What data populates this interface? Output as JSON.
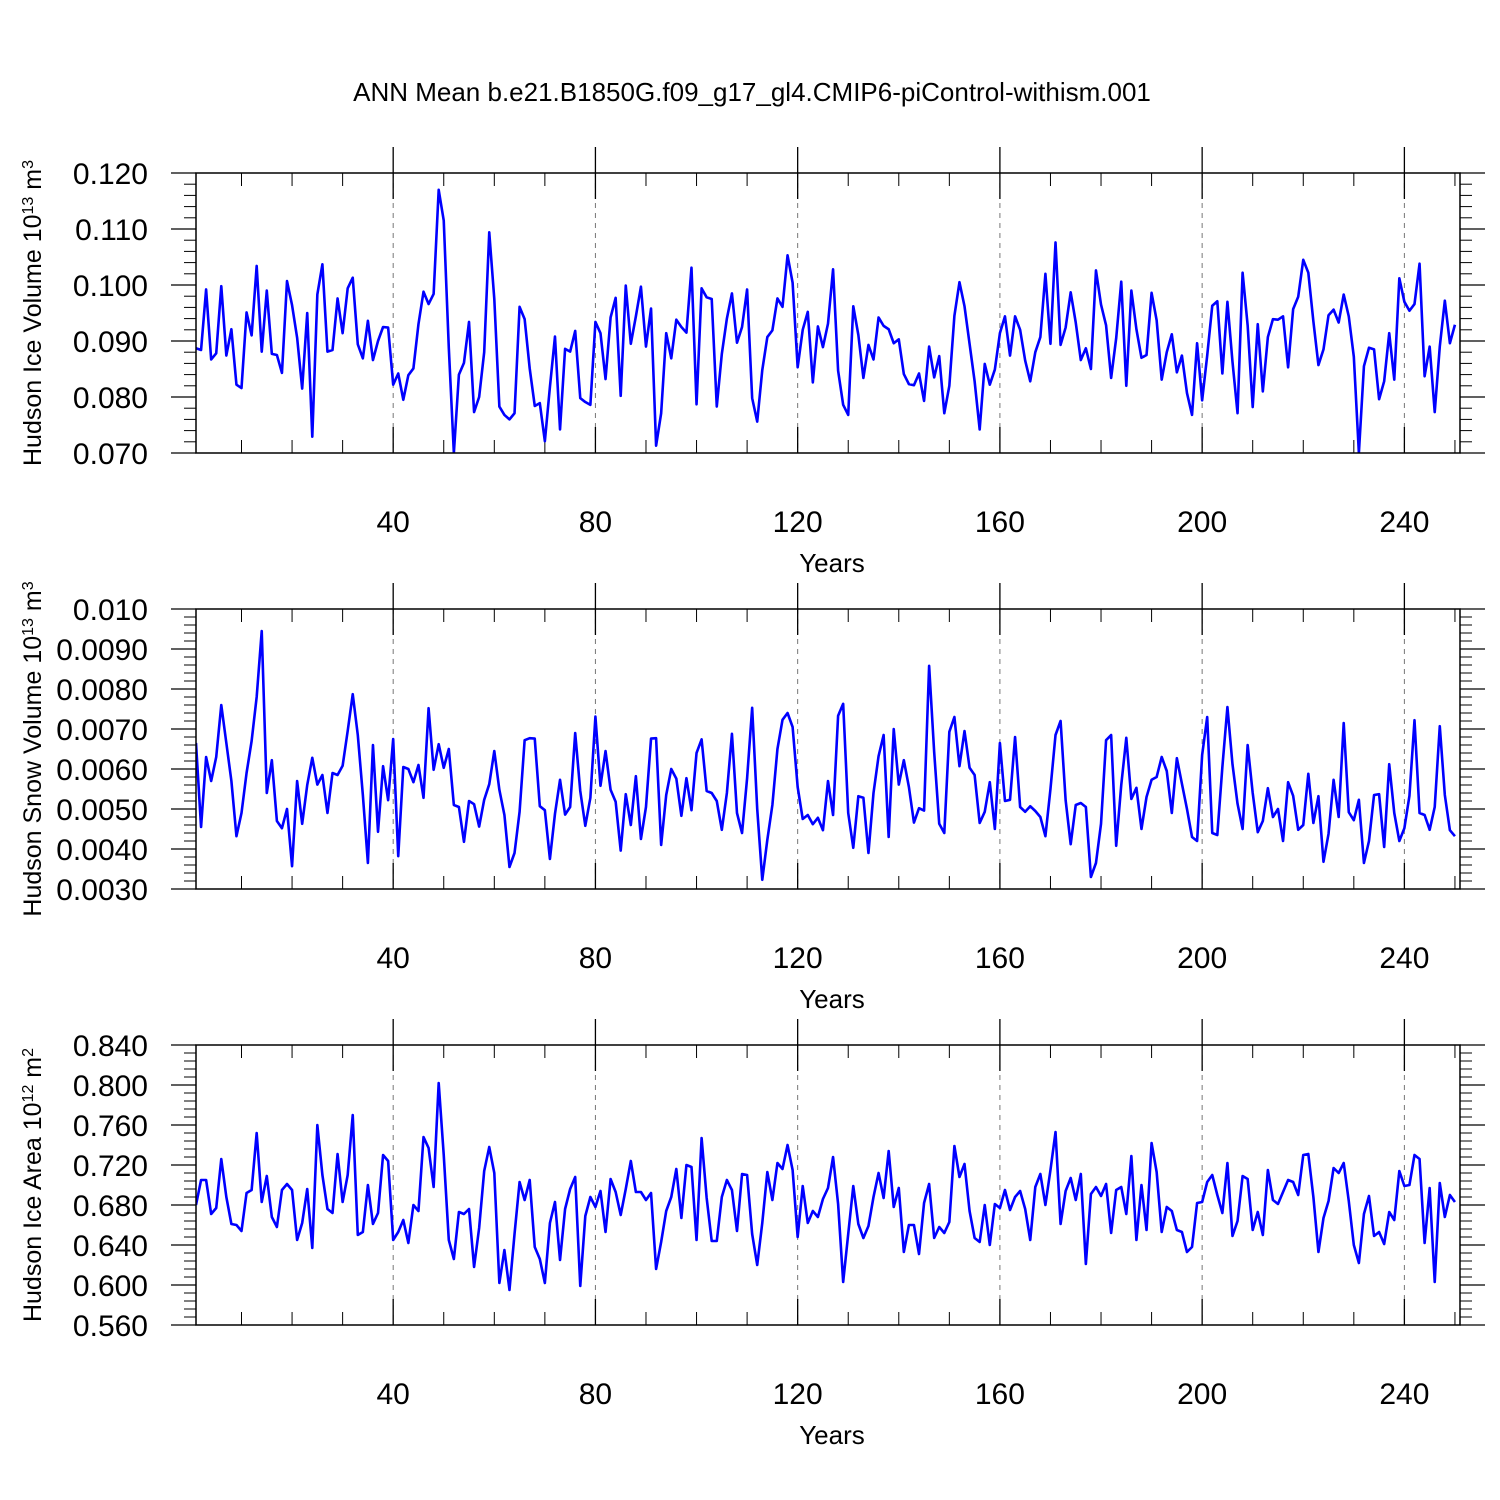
{
  "page_title": "ANN Mean b.e21.B1850G.f09_g17_gl4.CMIP6-piControl-withism.001",
  "line_color": "#0000ff",
  "chart_data": [
    {
      "type": "line",
      "title": "ANN Mean b.e21.B1850G.f09_g17_gl4.CMIP6-piControl-withism.001",
      "xlabel": "Years",
      "ylabel": "Hudson Ice Volume 10",
      "ylabel_exp": "13",
      "ylabel_unit": "m",
      "ylabel_unit_exp": "3",
      "xlim": [
        1,
        251
      ],
      "ylim": [
        0.07,
        0.12
      ],
      "x_ticks": [
        "40",
        "80",
        "120",
        "160",
        "200",
        "240"
      ],
      "y_ticks": [
        "0.070",
        "0.080",
        "0.090",
        "0.100",
        "0.110",
        "0.120"
      ],
      "grid": "vertical dashed at labeled x ticks",
      "series": [
        {
          "name": "Hudson Ice Volume",
          "x_start": 1,
          "values": [
            0.0887,
            0.0884,
            0.0992,
            0.0867,
            0.0878,
            0.0998,
            0.0874,
            0.0921,
            0.0822,
            0.0816,
            0.0951,
            0.091,
            0.1034,
            0.0881,
            0.099,
            0.0877,
            0.0875,
            0.0843,
            0.1007,
            0.0964,
            0.0906,
            0.0815,
            0.095,
            0.0729,
            0.0983,
            0.1037,
            0.0881,
            0.0884,
            0.0976,
            0.0914,
            0.0994,
            0.1013,
            0.0894,
            0.0869,
            0.0936,
            0.0866,
            0.09,
            0.0925,
            0.0924,
            0.0822,
            0.0842,
            0.0795,
            0.0839,
            0.0851,
            0.093,
            0.0988,
            0.0966,
            0.0984,
            0.117,
            0.1115,
            0.0888,
            0.07,
            0.084,
            0.0861,
            0.0934,
            0.0773,
            0.08,
            0.088,
            0.1094,
            0.0975,
            0.0783,
            0.0768,
            0.076,
            0.0771,
            0.0961,
            0.0939,
            0.0851,
            0.0784,
            0.0789,
            0.0721,
            0.0818,
            0.0908,
            0.0742,
            0.0886,
            0.0881,
            0.0918,
            0.0798,
            0.0791,
            0.0786,
            0.0934,
            0.0914,
            0.0832,
            0.0942,
            0.0977,
            0.0802,
            0.0999,
            0.0895,
            0.0944,
            0.0997,
            0.089,
            0.0958,
            0.0713,
            0.0771,
            0.0914,
            0.0869,
            0.0938,
            0.0925,
            0.0915,
            0.1031,
            0.0787,
            0.0994,
            0.0978,
            0.0975,
            0.0783,
            0.0877,
            0.094,
            0.0985,
            0.0897,
            0.0925,
            0.0992,
            0.0798,
            0.0756,
            0.0848,
            0.0907,
            0.0919,
            0.0976,
            0.0961,
            0.1053,
            0.1004,
            0.0853,
            0.092,
            0.0952,
            0.0826,
            0.0926,
            0.0889,
            0.0931,
            0.1028,
            0.0847,
            0.0786,
            0.0768,
            0.0962,
            0.0911,
            0.0834,
            0.0893,
            0.0867,
            0.0942,
            0.0927,
            0.0921,
            0.0896,
            0.0903,
            0.0841,
            0.0823,
            0.0821,
            0.0842,
            0.0793,
            0.089,
            0.0835,
            0.0873,
            0.0771,
            0.082,
            0.0945,
            0.1005,
            0.0962,
            0.0895,
            0.0828,
            0.0742,
            0.0859,
            0.0822,
            0.0849,
            0.0914,
            0.0944,
            0.0874,
            0.0944,
            0.092,
            0.0865,
            0.0828,
            0.088,
            0.0907,
            0.102,
            0.0895,
            0.1076,
            0.0893,
            0.0924,
            0.0987,
            0.0933,
            0.0866,
            0.0887,
            0.085,
            0.1026,
            0.0965,
            0.0928,
            0.0834,
            0.0905,
            0.1006,
            0.082,
            0.099,
            0.0921,
            0.087,
            0.0875,
            0.0986,
            0.0937,
            0.0831,
            0.088,
            0.0912,
            0.0844,
            0.0874,
            0.0807,
            0.0768,
            0.0896,
            0.0794,
            0.0874,
            0.0963,
            0.0971,
            0.0842,
            0.097,
            0.0863,
            0.0771,
            0.1022,
            0.0928,
            0.0782,
            0.093,
            0.081,
            0.0907,
            0.0939,
            0.0938,
            0.0944,
            0.0853,
            0.0957,
            0.0979,
            0.1045,
            0.1022,
            0.0935,
            0.0857,
            0.0885,
            0.0946,
            0.0956,
            0.0933,
            0.0983,
            0.0944,
            0.0872,
            0.07,
            0.0855,
            0.0888,
            0.0885,
            0.0796,
            0.0828,
            0.0914,
            0.0831,
            0.1012,
            0.097,
            0.0954,
            0.0966,
            0.1038,
            0.0837,
            0.089,
            0.0773,
            0.089,
            0.0972,
            0.0896,
            0.0929
          ]
        }
      ]
    },
    {
      "type": "line",
      "xlabel": "Years",
      "ylabel": "Hudson Snow Volume 10",
      "ylabel_exp": "13",
      "ylabel_unit": "m",
      "ylabel_unit_exp": "3",
      "xlim": [
        1,
        251
      ],
      "ylim": [
        0.003,
        0.01
      ],
      "x_ticks": [
        "40",
        "80",
        "120",
        "160",
        "200",
        "240"
      ],
      "y_ticks": [
        "0.0030",
        "0.0040",
        "0.0050",
        "0.0060",
        "0.0070",
        "0.0080",
        "0.0090",
        "0.010"
      ],
      "grid": "vertical dashed at labeled x ticks",
      "series": [
        {
          "name": "Hudson Snow Volume",
          "x_start": 1,
          "values": [
            0.00665,
            0.00455,
            0.0063,
            0.0057,
            0.0063,
            0.0076,
            0.00665,
            0.0057,
            0.00432,
            0.0049,
            0.0059,
            0.0067,
            0.0078,
            0.00945,
            0.0054,
            0.00622,
            0.0047,
            0.00452,
            0.005,
            0.00357,
            0.0057,
            0.00463,
            0.0056,
            0.00628,
            0.00561,
            0.00585,
            0.0049,
            0.0059,
            0.00585,
            0.00608,
            0.00695,
            0.00787,
            0.00685,
            0.00535,
            0.00365,
            0.0066,
            0.00443,
            0.00607,
            0.00522,
            0.00675,
            0.00382,
            0.00605,
            0.006,
            0.00567,
            0.0061,
            0.00528,
            0.00752,
            0.00598,
            0.00662,
            0.00603,
            0.0065,
            0.0051,
            0.00505,
            0.00418,
            0.0052,
            0.00512,
            0.00456,
            0.00523,
            0.00562,
            0.00645,
            0.00548,
            0.00485,
            0.00355,
            0.0039,
            0.00493,
            0.00672,
            0.00677,
            0.00676,
            0.00507,
            0.00497,
            0.00375,
            0.00488,
            0.00573,
            0.00486,
            0.00505,
            0.0069,
            0.00545,
            0.00458,
            0.00528,
            0.00731,
            0.00558,
            0.00645,
            0.00548,
            0.00518,
            0.00396,
            0.00537,
            0.0046,
            0.00582,
            0.00425,
            0.00505,
            0.00676,
            0.00677,
            0.0041,
            0.00535,
            0.006,
            0.00576,
            0.00483,
            0.00577,
            0.00497,
            0.0064,
            0.00674,
            0.00545,
            0.0054,
            0.0052,
            0.00448,
            0.0054,
            0.00688,
            0.0049,
            0.0044,
            0.00577,
            0.00753,
            0.005,
            0.00323,
            0.00423,
            0.0051,
            0.0065,
            0.00723,
            0.0074,
            0.00705,
            0.00555,
            0.00475,
            0.00485,
            0.00462,
            0.00478,
            0.00447,
            0.0057,
            0.00485,
            0.00733,
            0.00763,
            0.0049,
            0.00403,
            0.00532,
            0.00528,
            0.0039,
            0.0054,
            0.00632,
            0.00685,
            0.0043,
            0.007,
            0.00561,
            0.00622,
            0.00555,
            0.00466,
            0.00502,
            0.00496,
            0.00858,
            0.00642,
            0.00463,
            0.0044,
            0.00693,
            0.0073,
            0.00607,
            0.00695,
            0.00603,
            0.00585,
            0.00465,
            0.00493,
            0.00567,
            0.0045,
            0.00665,
            0.0052,
            0.00523,
            0.0068,
            0.00505,
            0.00493,
            0.00507,
            0.00495,
            0.0048,
            0.00432,
            0.0055,
            0.00685,
            0.0072,
            0.00522,
            0.00412,
            0.0051,
            0.00515,
            0.00505,
            0.0033,
            0.00365,
            0.00463,
            0.00672,
            0.00685,
            0.00408,
            0.0056,
            0.00678,
            0.00525,
            0.00553,
            0.0045,
            0.0053,
            0.00573,
            0.0058,
            0.0063,
            0.00595,
            0.0049,
            0.00627,
            0.00563,
            0.005,
            0.0043,
            0.0042,
            0.00635,
            0.0073,
            0.0044,
            0.00435,
            0.00605,
            0.00755,
            0.00612,
            0.00513,
            0.0045,
            0.0066,
            0.0054,
            0.00442,
            0.0047,
            0.00552,
            0.0048,
            0.005,
            0.0042,
            0.00567,
            0.00533,
            0.00448,
            0.0046,
            0.00588,
            0.00465,
            0.00532,
            0.00368,
            0.00438,
            0.00573,
            0.0048,
            0.00715,
            0.00492,
            0.00472,
            0.00523,
            0.00365,
            0.0042,
            0.00535,
            0.00537,
            0.00405,
            0.00612,
            0.0049,
            0.0042,
            0.00452,
            0.00533,
            0.00722,
            0.0049,
            0.00485,
            0.00448,
            0.00505,
            0.00707,
            0.00535,
            0.00447,
            0.00432
          ]
        }
      ]
    },
    {
      "type": "line",
      "xlabel": "Years",
      "ylabel": "Hudson Ice Area 10",
      "ylabel_exp": "12",
      "ylabel_unit": "m",
      "ylabel_unit_exp": "2",
      "xlim": [
        1,
        251
      ],
      "ylim": [
        0.56,
        0.84
      ],
      "x_ticks": [
        "40",
        "80",
        "120",
        "160",
        "200",
        "240"
      ],
      "y_ticks": [
        "0.560",
        "0.600",
        "0.640",
        "0.680",
        "0.720",
        "0.760",
        "0.800",
        "0.840"
      ],
      "grid": "vertical dashed at labeled x ticks",
      "series": [
        {
          "name": "Hudson Ice Area",
          "x_start": 1,
          "values": [
            0.68,
            0.705,
            0.705,
            0.671,
            0.677,
            0.726,
            0.688,
            0.661,
            0.66,
            0.654,
            0.692,
            0.695,
            0.752,
            0.683,
            0.709,
            0.668,
            0.658,
            0.695,
            0.701,
            0.695,
            0.645,
            0.662,
            0.696,
            0.637,
            0.76,
            0.71,
            0.676,
            0.672,
            0.731,
            0.683,
            0.71,
            0.77,
            0.65,
            0.653,
            0.7,
            0.661,
            0.672,
            0.73,
            0.724,
            0.645,
            0.653,
            0.665,
            0.642,
            0.68,
            0.674,
            0.748,
            0.737,
            0.698,
            0.802,
            0.73,
            0.645,
            0.626,
            0.673,
            0.671,
            0.676,
            0.618,
            0.657,
            0.714,
            0.738,
            0.712,
            0.602,
            0.635,
            0.595,
            0.651,
            0.703,
            0.685,
            0.705,
            0.638,
            0.626,
            0.602,
            0.662,
            0.683,
            0.625,
            0.676,
            0.696,
            0.708,
            0.599,
            0.669,
            0.688,
            0.678,
            0.694,
            0.653,
            0.706,
            0.693,
            0.67,
            0.696,
            0.724,
            0.693,
            0.693,
            0.685,
            0.692,
            0.616,
            0.643,
            0.674,
            0.688,
            0.716,
            0.667,
            0.72,
            0.718,
            0.645,
            0.747,
            0.687,
            0.644,
            0.644,
            0.688,
            0.705,
            0.695,
            0.654,
            0.711,
            0.71,
            0.651,
            0.62,
            0.662,
            0.713,
            0.685,
            0.722,
            0.716,
            0.74,
            0.715,
            0.648,
            0.699,
            0.662,
            0.674,
            0.668,
            0.686,
            0.697,
            0.728,
            0.681,
            0.603,
            0.651,
            0.699,
            0.661,
            0.647,
            0.659,
            0.688,
            0.712,
            0.687,
            0.734,
            0.678,
            0.697,
            0.633,
            0.66,
            0.66,
            0.631,
            0.682,
            0.701,
            0.647,
            0.658,
            0.652,
            0.663,
            0.739,
            0.708,
            0.721,
            0.674,
            0.647,
            0.643,
            0.68,
            0.64,
            0.681,
            0.677,
            0.695,
            0.675,
            0.688,
            0.694,
            0.676,
            0.645,
            0.698,
            0.711,
            0.68,
            0.715,
            0.753,
            0.661,
            0.694,
            0.707,
            0.685,
            0.711,
            0.621,
            0.691,
            0.698,
            0.689,
            0.701,
            0.652,
            0.695,
            0.698,
            0.671,
            0.729,
            0.645,
            0.7,
            0.655,
            0.742,
            0.713,
            0.653,
            0.678,
            0.674,
            0.655,
            0.653,
            0.633,
            0.638,
            0.682,
            0.683,
            0.703,
            0.71,
            0.69,
            0.672,
            0.722,
            0.649,
            0.664,
            0.709,
            0.706,
            0.655,
            0.673,
            0.65,
            0.715,
            0.685,
            0.681,
            0.693,
            0.705,
            0.703,
            0.69,
            0.73,
            0.731,
            0.688,
            0.633,
            0.667,
            0.684,
            0.717,
            0.712,
            0.722,
            0.684,
            0.64,
            0.622,
            0.671,
            0.689,
            0.649,
            0.653,
            0.641,
            0.673,
            0.665,
            0.714,
            0.699,
            0.7,
            0.73,
            0.726,
            0.642,
            0.697,
            0.603,
            0.702,
            0.668,
            0.69,
            0.683
          ]
        }
      ]
    }
  ]
}
